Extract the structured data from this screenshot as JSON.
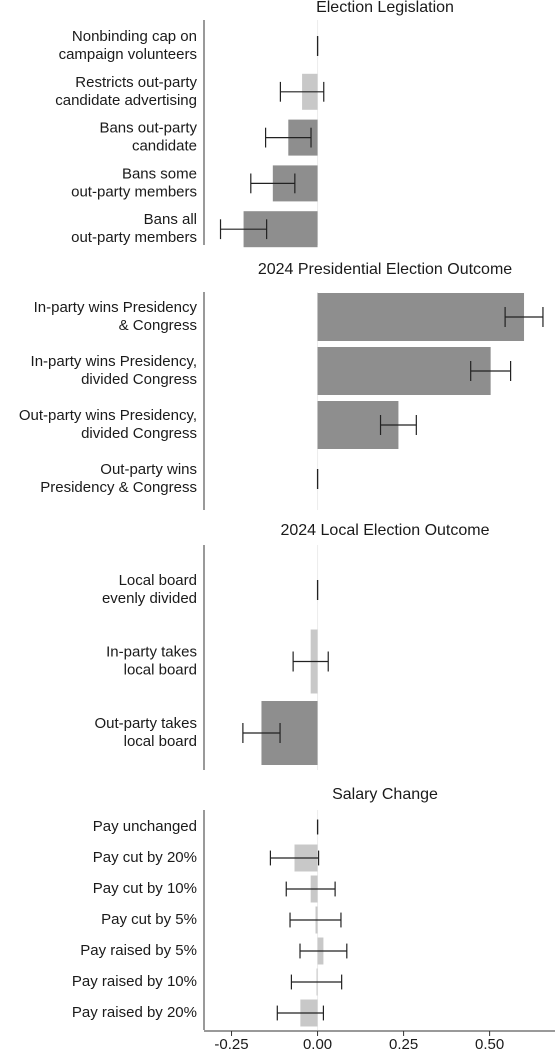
{
  "chart_data": [
    {
      "type": "hbar",
      "title": "Election Legislation",
      "categories": [
        [
          "Nonbinding cap on",
          "campaign volunteers"
        ],
        [
          "Restricts out-party",
          "candidate advertising"
        ],
        [
          "Bans out-party",
          "candidate"
        ],
        [
          "Bans some",
          "out-party members"
        ],
        [
          "Bans all",
          "out-party members"
        ]
      ],
      "values": [
        0,
        -0.045,
        -0.085,
        -0.13,
        -0.215
      ],
      "errors": [
        0,
        0.063,
        0.066,
        0.064,
        0.067
      ],
      "colors": [
        "#c8c8c8",
        "#c8c8c8",
        "#8e8e8e",
        "#8e8e8e",
        "#8e8e8e"
      ],
      "xlim": [
        -0.33,
        0.69
      ]
    },
    {
      "type": "hbar",
      "title": "2024 Presidential Election Outcome",
      "categories": [
        [
          "In-party wins Presidency",
          "& Congress"
        ],
        [
          "In-party wins Presidency,",
          "divided Congress"
        ],
        [
          "Out-party wins Presidency,",
          "divided Congress"
        ],
        [
          "Out-party wins",
          "Presidency & Congress"
        ]
      ],
      "values": [
        0.6,
        0.503,
        0.235,
        0
      ],
      "errors": [
        0.055,
        0.058,
        0.052,
        0
      ],
      "colors": [
        "#8e8e8e",
        "#8e8e8e",
        "#8e8e8e",
        "#c8c8c8"
      ],
      "xlim": [
        -0.33,
        0.69
      ]
    },
    {
      "type": "hbar",
      "title": "2024 Local Election Outcome",
      "categories": [
        [
          "Local board",
          "evenly divided"
        ],
        [
          "In-party takes",
          "local board"
        ],
        [
          "Out-party takes",
          "local board"
        ]
      ],
      "values": [
        0,
        -0.02,
        -0.163
      ],
      "errors": [
        0,
        0.051,
        0.054
      ],
      "colors": [
        "#c8c8c8",
        "#c8c8c8",
        "#8e8e8e"
      ],
      "xlim": [
        -0.33,
        0.69
      ]
    },
    {
      "type": "hbar",
      "title": "Salary Change",
      "categories": [
        [
          "Pay unchanged"
        ],
        [
          "Pay cut by 20%"
        ],
        [
          "Pay cut by 10%"
        ],
        [
          "Pay cut by 5%"
        ],
        [
          "Pay raised by 5%"
        ],
        [
          "Pay raised by 10%"
        ],
        [
          "Pay raised by 20%"
        ]
      ],
      "values": [
        0,
        -0.067,
        -0.02,
        -0.006,
        0.017,
        -0.003,
        -0.05
      ],
      "errors": [
        0,
        0.07,
        0.071,
        0.074,
        0.068,
        0.073,
        0.067
      ],
      "colors": [
        "#c8c8c8",
        "#c8c8c8",
        "#c8c8c8",
        "#c8c8c8",
        "#c8c8c8",
        "#c8c8c8",
        "#c8c8c8"
      ],
      "xlim": [
        -0.33,
        0.69
      ],
      "xticks": [
        -0.25,
        {
          "value": 0,
          "label": "0.00"
        },
        {
          "value": 0.25,
          "label": "0.25"
        },
        {
          "value": 0.5,
          "label": "0.50"
        }
      ]
    }
  ]
}
